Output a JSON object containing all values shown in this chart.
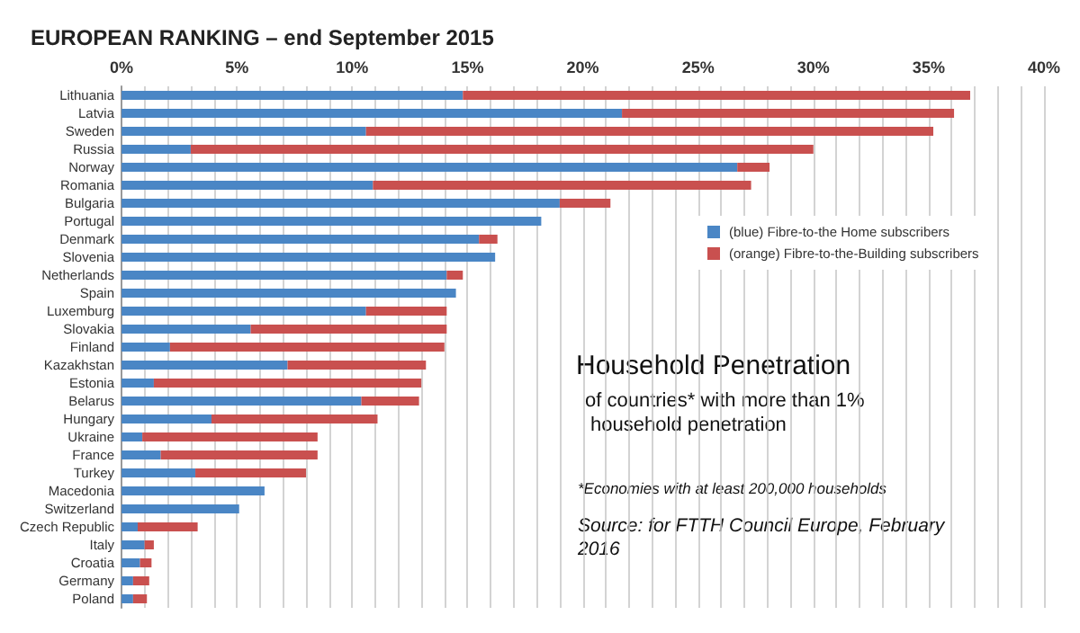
{
  "chart_data": {
    "type": "bar",
    "orientation": "horizontal",
    "stacked": true,
    "title": "EUROPEAN RANKING – end September 2015",
    "categories": [
      "Lithuania",
      "Latvia",
      "Sweden",
      "Russia",
      "Norway",
      "Romania",
      "Bulgaria",
      "Portugal",
      "Denmark",
      "Slovenia",
      "Netherlands",
      "Spain",
      "Luxemburg",
      "Slovakia",
      "Finland",
      "Kazakhstan",
      "Estonia",
      "Belarus",
      "Hungary",
      "Ukraine",
      "France",
      "Turkey",
      "Macedonia",
      "Switzerland",
      "Czech Republic",
      "Italy",
      "Croatia",
      "Germany",
      "Poland"
    ],
    "series": [
      {
        "name": "(blue) Fibre-to-the Home subscribers",
        "color": "#4a86c5",
        "values": [
          14.8,
          21.7,
          10.6,
          3.0,
          26.7,
          10.9,
          19.0,
          18.2,
          15.5,
          16.2,
          14.1,
          14.5,
          10.6,
          5.6,
          2.1,
          7.2,
          1.4,
          10.4,
          3.9,
          0.9,
          1.7,
          3.2,
          6.2,
          5.1,
          0.7,
          1.0,
          0.8,
          0.5,
          0.5
        ]
      },
      {
        "name": "(orange) Fibre-to-the-Building subscribers",
        "color": "#c9504f",
        "values": [
          22.0,
          14.4,
          24.6,
          27.0,
          1.4,
          16.4,
          2.2,
          0,
          0.8,
          0,
          0.7,
          0,
          3.5,
          8.5,
          11.9,
          6.0,
          11.6,
          2.5,
          7.2,
          7.6,
          6.8,
          4.8,
          0,
          0,
          2.6,
          0.4,
          0.5,
          0.7,
          0.6
        ]
      }
    ],
    "xlim": [
      0,
      40
    ],
    "xticks": [
      {
        "value": 0,
        "label": "0%"
      },
      {
        "value": 1,
        "label": null
      },
      {
        "value": 2,
        "label": null
      },
      {
        "value": 3,
        "label": null
      },
      {
        "value": 4,
        "label": null
      },
      {
        "value": 5,
        "label": "5%"
      },
      {
        "value": 6,
        "label": null
      },
      {
        "value": 7,
        "label": null
      },
      {
        "value": 8,
        "label": null
      },
      {
        "value": 9,
        "label": null
      },
      {
        "value": 10,
        "label": "10%"
      },
      {
        "value": 11,
        "label": null
      },
      {
        "value": 12,
        "label": null
      },
      {
        "value": 13,
        "label": null
      },
      {
        "value": 14,
        "label": null
      },
      {
        "value": 15,
        "label": "15%"
      },
      {
        "value": 16,
        "label": null
      },
      {
        "value": 17,
        "label": null
      },
      {
        "value": 18,
        "label": null
      },
      {
        "value": 19,
        "label": null
      },
      {
        "value": 20,
        "label": "20%"
      },
      {
        "value": 21,
        "label": null
      },
      {
        "value": 22,
        "label": null
      },
      {
        "value": 23,
        "label": null
      },
      {
        "value": 24,
        "label": null
      },
      {
        "value": 25,
        "label": "25%"
      },
      {
        "value": 26,
        "label": null
      },
      {
        "value": 27,
        "label": null
      },
      {
        "value": 28,
        "label": null
      },
      {
        "value": 29,
        "label": null
      },
      {
        "value": 30,
        "label": "30%"
      },
      {
        "value": 31,
        "label": null
      },
      {
        "value": 32,
        "label": null
      },
      {
        "value": 33,
        "label": null
      },
      {
        "value": 34,
        "label": null
      },
      {
        "value": 35,
        "label": "35%"
      },
      {
        "value": 36,
        "label": null
      },
      {
        "value": 37,
        "label": null
      },
      {
        "value": 38,
        "label": null
      },
      {
        "value": 39,
        "label": null
      },
      {
        "value": 40,
        "label": "40%"
      }
    ],
    "grid": "x",
    "legend": "right",
    "annotations": [
      "Household Penetration",
      "of countries* with more than 1% household penetration",
      "*Economies with at least 200,000 households",
      "Source: for FTTH Council Europe, February 2016"
    ]
  }
}
